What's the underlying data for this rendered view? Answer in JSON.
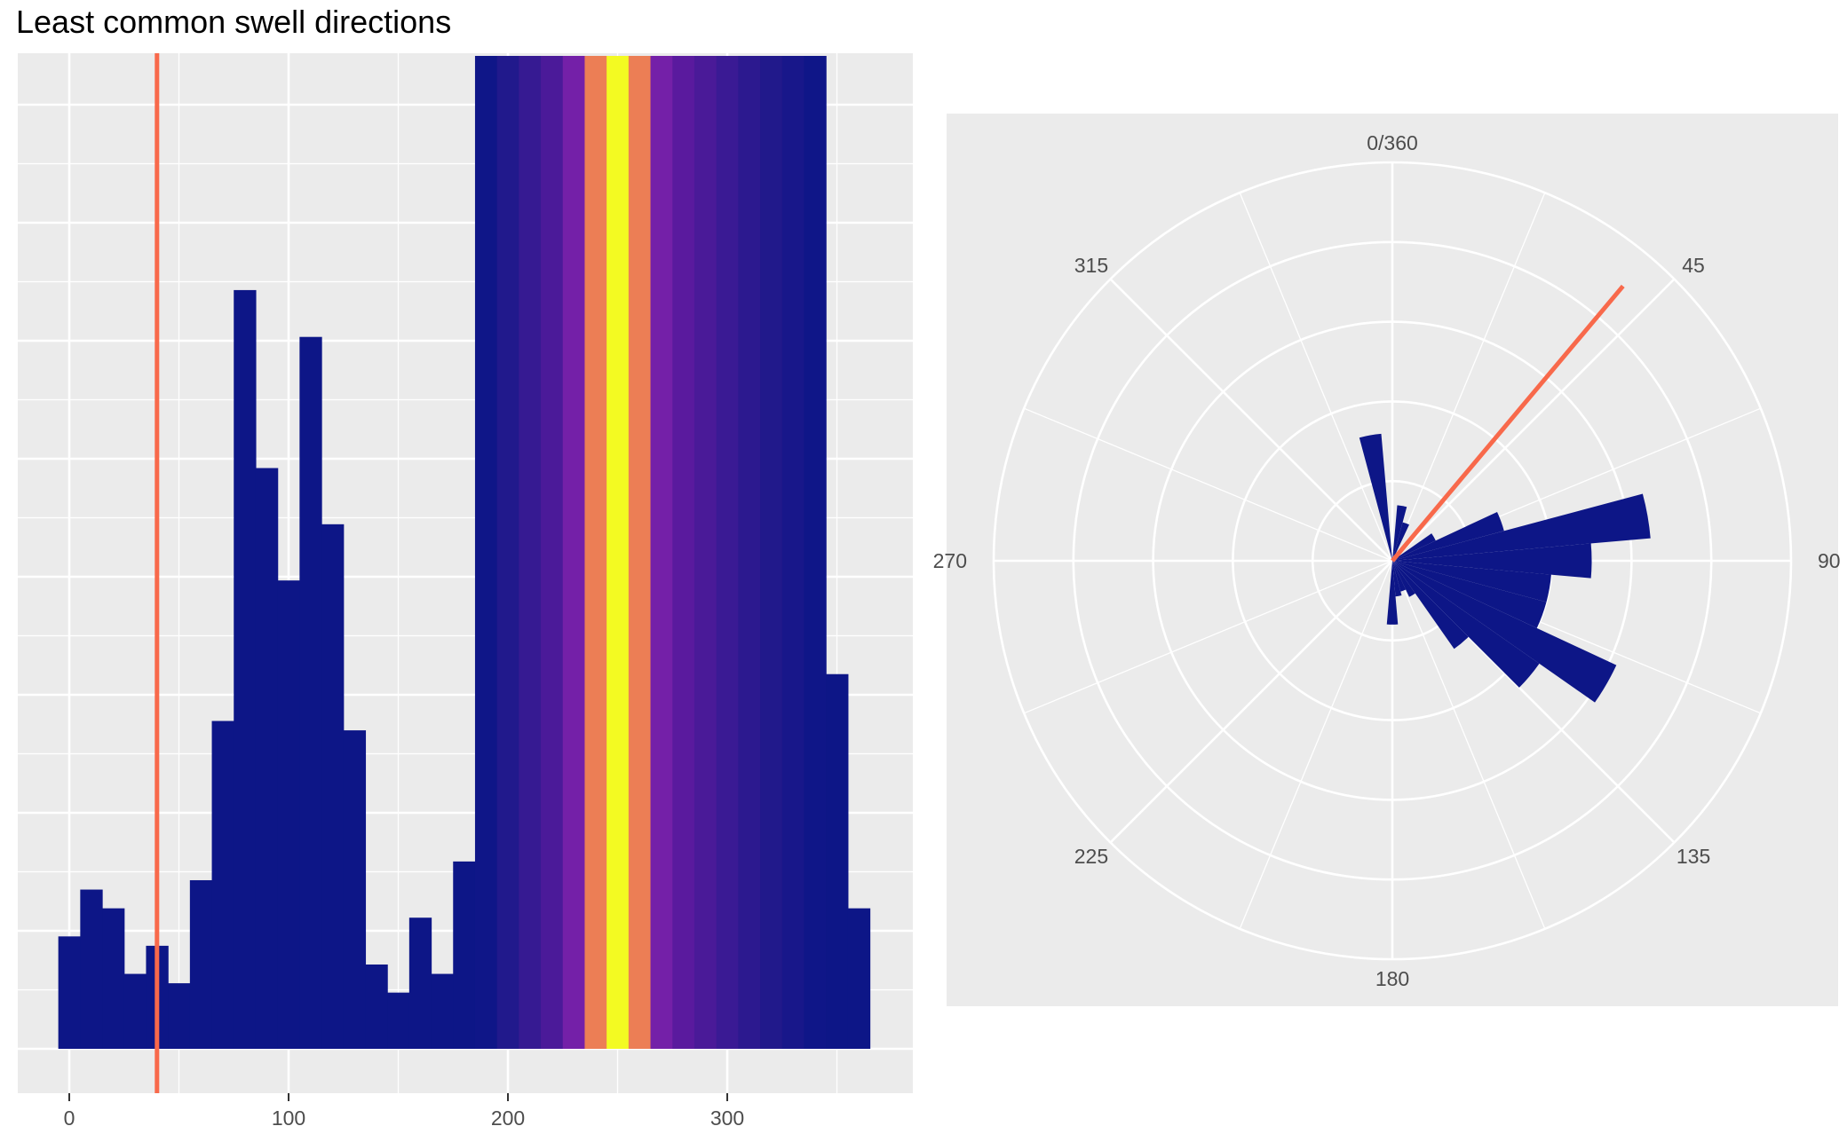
{
  "title": "Least common swell directions",
  "colors": {
    "panel_bg": "#ebebeb",
    "grid": "#ffffff",
    "bar": "#0d1687",
    "marker": "#f8694b",
    "tick_text": "#4d4d4d"
  },
  "chart_data": [
    {
      "type": "bar",
      "chart": "histogram",
      "xlim": [
        -5,
        365
      ],
      "xticks": [
        0,
        100,
        200,
        300
      ],
      "bin_width": 10,
      "y_tick_labels": "none",
      "grid": true,
      "marker_line": {
        "x": 40,
        "color": "#f8694b"
      },
      "bins": [
        {
          "x": 0,
          "value": 12,
          "color": "#0d1687"
        },
        {
          "x": 10,
          "value": 17,
          "color": "#0d1687"
        },
        {
          "x": 20,
          "value": 15,
          "color": "#0d1687"
        },
        {
          "x": 30,
          "value": 8,
          "color": "#0d1687"
        },
        {
          "x": 40,
          "value": 11,
          "color": "#0d1687"
        },
        {
          "x": 50,
          "value": 7,
          "color": "#0d1687"
        },
        {
          "x": 60,
          "value": 18,
          "color": "#0d1687"
        },
        {
          "x": 70,
          "value": 35,
          "color": "#0d1687"
        },
        {
          "x": 80,
          "value": 81,
          "color": "#0d1687"
        },
        {
          "x": 90,
          "value": 62,
          "color": "#0d1687"
        },
        {
          "x": 100,
          "value": 50,
          "color": "#0d1687"
        },
        {
          "x": 110,
          "value": 76,
          "color": "#0d1687"
        },
        {
          "x": 120,
          "value": 56,
          "color": "#0d1687"
        },
        {
          "x": 130,
          "value": 34,
          "color": "#0d1687"
        },
        {
          "x": 140,
          "value": 9,
          "color": "#0d1687"
        },
        {
          "x": 150,
          "value": 6,
          "color": "#0d1687"
        },
        {
          "x": 160,
          "value": 14,
          "color": "#0d1687"
        },
        {
          "x": 170,
          "value": 8,
          "color": "#0d1687"
        },
        {
          "x": 180,
          "value": 20,
          "color": "#0d1687"
        },
        {
          "x": 190,
          "value": 106,
          "color": "#0f1688"
        },
        {
          "x": 200,
          "value": 106,
          "color": "#21198c"
        },
        {
          "x": 210,
          "value": 106,
          "color": "#361a92"
        },
        {
          "x": 220,
          "value": 106,
          "color": "#4b1a99"
        },
        {
          "x": 230,
          "value": 106,
          "color": "#7420a8"
        },
        {
          "x": 240,
          "value": 106,
          "color": "#ec7e55"
        },
        {
          "x": 250,
          "value": 106,
          "color": "#f3fa22"
        },
        {
          "x": 260,
          "value": 106,
          "color": "#ec7e55"
        },
        {
          "x": 270,
          "value": 106,
          "color": "#7420a8"
        },
        {
          "x": 280,
          "value": 106,
          "color": "#5a1a9e"
        },
        {
          "x": 290,
          "value": 106,
          "color": "#4a1a98"
        },
        {
          "x": 300,
          "value": 106,
          "color": "#3a1a94"
        },
        {
          "x": 310,
          "value": 106,
          "color": "#2c198f"
        },
        {
          "x": 320,
          "value": 106,
          "color": "#21198b"
        },
        {
          "x": 330,
          "value": 106,
          "color": "#18178a"
        },
        {
          "x": 340,
          "value": 106,
          "color": "#0f1688"
        },
        {
          "x": 350,
          "value": 40,
          "color": "#0d1687"
        },
        {
          "x": 360,
          "value": 15,
          "color": "#0d1687"
        }
      ]
    },
    {
      "type": "bar",
      "chart": "polar rose",
      "theta_labels": [
        "0/360",
        "45",
        "90",
        "135",
        "180",
        "225",
        "270",
        "315"
      ],
      "r_max": 100,
      "radial_gridlines": [
        20,
        40,
        60,
        80,
        100
      ],
      "marker_line": {
        "direction": 40,
        "r": 90,
        "color": "#f8694b"
      },
      "wedges": [
        {
          "direction": 350,
          "r": 32
        },
        {
          "direction": 10,
          "r": 14
        },
        {
          "direction": 20,
          "r": 10
        },
        {
          "direction": 60,
          "r": 12
        },
        {
          "direction": 70,
          "r": 29
        },
        {
          "direction": 80,
          "r": 65
        },
        {
          "direction": 90,
          "r": 50
        },
        {
          "direction": 100,
          "r": 40
        },
        {
          "direction": 110,
          "r": 40
        },
        {
          "direction": 120,
          "r": 62
        },
        {
          "direction": 130,
          "r": 45
        },
        {
          "direction": 140,
          "r": 27
        },
        {
          "direction": 150,
          "r": 10
        },
        {
          "direction": 160,
          "r": 8
        },
        {
          "direction": 170,
          "r": 9
        },
        {
          "direction": 180,
          "r": 16
        }
      ]
    }
  ]
}
